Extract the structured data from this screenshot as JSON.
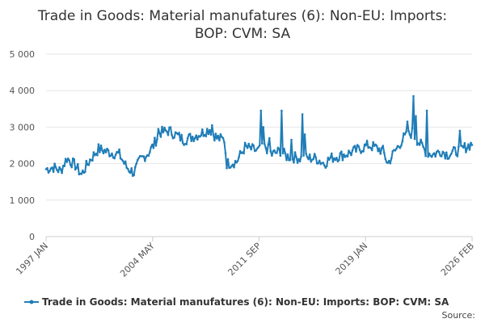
{
  "chart_data": {
    "type": "line",
    "title_lines": [
      "Trade in Goods: Material manufatures (6): Non-EU: Imports:",
      "BOP: CVM: SA"
    ],
    "x_tick_labels": [
      "1997 JAN",
      "2004 MAY",
      "2011 SEP",
      "2019 JAN",
      "2026 FEB"
    ],
    "y_tick_labels": [
      "0",
      "1 000",
      "2 000",
      "3 000",
      "4 000",
      "5 000"
    ],
    "y_ticks": [
      0,
      1000,
      2000,
      3000,
      4000,
      5000
    ],
    "ylim": [
      0,
      5000
    ],
    "x_range": [
      "1997-01",
      "2026-02"
    ],
    "xlabel": "",
    "ylabel": "",
    "grid": "horizontal",
    "legend_position": "bottom",
    "series": [
      {
        "name": "Trade in Goods: Material manufatures (6): Non-EU: Imports: BOP: CVM: SA",
        "color": "#1f7db8",
        "anchors": [
          [
            "1997-01",
            1850
          ],
          [
            "1997-07",
            1900
          ],
          [
            "1998-01",
            1800
          ],
          [
            "1998-06",
            2150
          ],
          [
            "1999-01",
            1950
          ],
          [
            "1999-06",
            1700
          ],
          [
            "2000-01",
            2100
          ],
          [
            "2000-08",
            2400
          ],
          [
            "2001-06",
            2300
          ],
          [
            "2002-01",
            2250
          ],
          [
            "2002-07",
            1900
          ],
          [
            "2003-01",
            1750
          ],
          [
            "2003-06",
            2100
          ],
          [
            "2004-01",
            2300
          ],
          [
            "2004-05",
            2500
          ],
          [
            "2004-10",
            2850
          ],
          [
            "2005-06",
            2900
          ],
          [
            "2006-06",
            2650
          ],
          [
            "2007-06",
            2800
          ],
          [
            "2008-03",
            2950
          ],
          [
            "2008-09",
            2700
          ],
          [
            "2009-03",
            2650
          ],
          [
            "2009-05",
            2000
          ],
          [
            "2010-01",
            2050
          ],
          [
            "2010-08",
            2450
          ],
          [
            "2011-06",
            2350
          ],
          [
            "2012-01",
            2450
          ],
          [
            "2012-06",
            2250
          ],
          [
            "2013-01",
            2350
          ],
          [
            "2013-06",
            2200
          ],
          [
            "2014-06",
            2150
          ],
          [
            "2015-06",
            2150
          ],
          [
            "2016-01",
            2000
          ],
          [
            "2016-06",
            2150
          ],
          [
            "2017-06",
            2250
          ],
          [
            "2018-06",
            2400
          ],
          [
            "2019-01",
            2500
          ],
          [
            "2019-06",
            2450
          ],
          [
            "2020-01",
            2350
          ],
          [
            "2020-05",
            2000
          ],
          [
            "2020-10",
            2300
          ],
          [
            "2021-06",
            2700
          ],
          [
            "2022-01",
            2850
          ],
          [
            "2022-06",
            2600
          ],
          [
            "2023-01",
            2300
          ],
          [
            "2023-06",
            2250
          ],
          [
            "2024-01",
            2350
          ],
          [
            "2024-06",
            2250
          ],
          [
            "2025-06",
            2400
          ],
          [
            "2026-02",
            2550
          ]
        ],
        "spikes": [
          [
            "2004-09",
            2950
          ],
          [
            "2008-05",
            3050
          ],
          [
            "2011-09",
            3450
          ],
          [
            "2011-11",
            3000
          ],
          [
            "2012-04",
            2700
          ],
          [
            "2013-02",
            3450
          ],
          [
            "2013-10",
            2650
          ],
          [
            "2014-07",
            3350
          ],
          [
            "2014-09",
            2800
          ],
          [
            "2021-09",
            3150
          ],
          [
            "2022-02",
            3850
          ],
          [
            "2022-04",
            3300
          ],
          [
            "2023-01",
            3450
          ],
          [
            "2025-04",
            2900
          ]
        ]
      }
    ],
    "source_label": "Source:"
  }
}
